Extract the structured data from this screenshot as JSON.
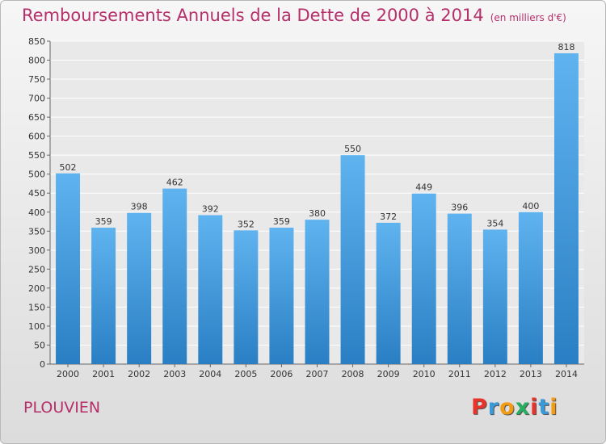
{
  "title": "Remboursements Annuels de la Dette de 2000 à 2014",
  "unit": "(en milliers d'€)",
  "commune": "PLOUVIEN",
  "logo": {
    "letters": [
      "P",
      "r",
      "o",
      "x",
      "i",
      "t",
      "i"
    ],
    "colors": [
      "#e8352b",
      "#3a9ad9",
      "#f39c12",
      "#27ae60",
      "#e8352b",
      "#3a9ad9",
      "#f39c12"
    ]
  },
  "chart_data": {
    "type": "bar",
    "title": "Remboursements Annuels de la Dette de 2000 à 2014",
    "categories": [
      "2000",
      "2001",
      "2002",
      "2003",
      "2004",
      "2005",
      "2006",
      "2007",
      "2008",
      "2009",
      "2010",
      "2011",
      "2012",
      "2013",
      "2014"
    ],
    "values": [
      502,
      359,
      398,
      462,
      392,
      352,
      359,
      380,
      550,
      372,
      449,
      396,
      354,
      400,
      818
    ],
    "ylim": [
      0,
      850
    ],
    "yticks": [
      0,
      50,
      100,
      150,
      200,
      250,
      300,
      350,
      400,
      450,
      500,
      550,
      600,
      650,
      700,
      750,
      800,
      850
    ],
    "grid": true,
    "bar_color": "#3a8fd6"
  }
}
